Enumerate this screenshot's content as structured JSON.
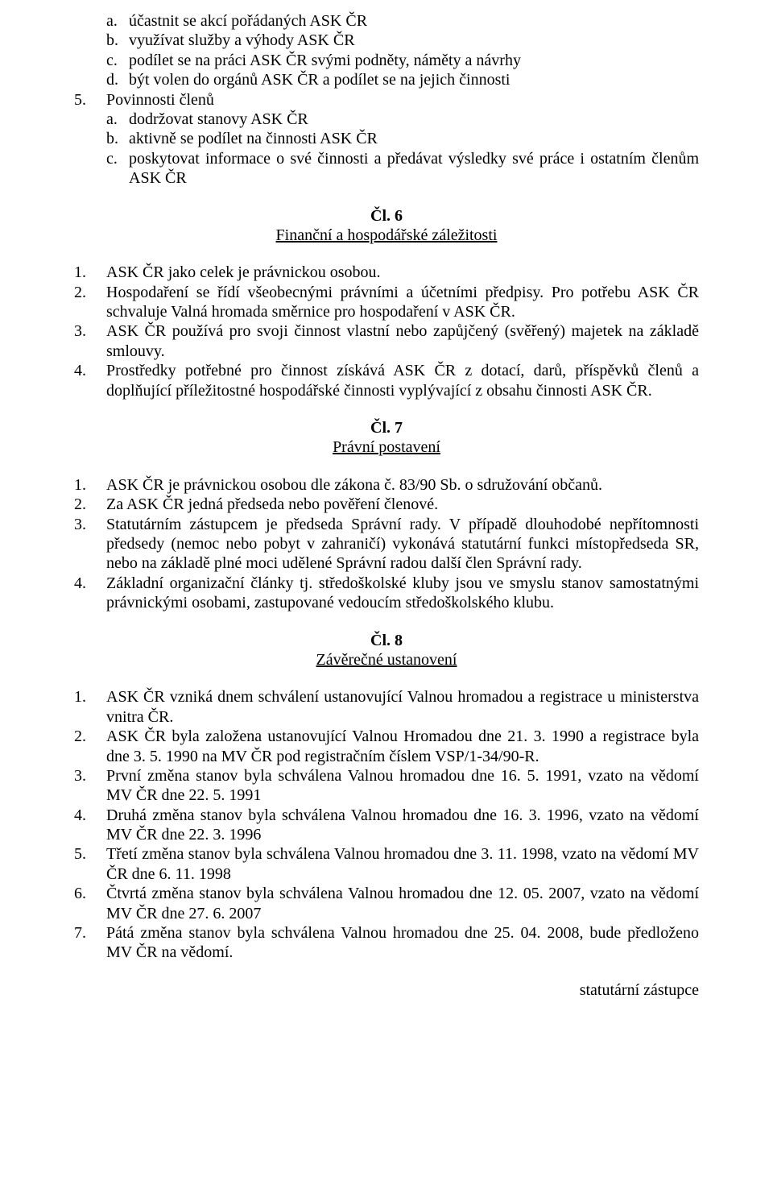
{
  "list4_sub": [
    {
      "m": "a.",
      "t": "účastnit se akcí pořádaných ASK ČR"
    },
    {
      "m": "b.",
      "t": "využívat služby a výhody ASK ČR"
    },
    {
      "m": "c.",
      "t": "podílet se na práci ASK ČR svými podněty, náměty a návrhy"
    },
    {
      "m": "d.",
      "t": "být volen do orgánů ASK ČR a podílet se na jejich činnosti"
    }
  ],
  "item5_marker": "5.",
  "item5_text": "Povinnosti členů",
  "list5_sub": [
    {
      "m": "a.",
      "t": "dodržovat stanovy ASK ČR"
    },
    {
      "m": "b.",
      "t": "aktivně se podílet na činnosti ASK ČR"
    },
    {
      "m": "c.",
      "t": "poskytovat informace o své činnosti a předávat výsledky své práce i ostatním členům ASK ČR"
    }
  ],
  "art6_title": "Čl. 6",
  "art6_sub": "Finanční a hospodářské záležitosti",
  "art6_items": [
    {
      "m": "1.",
      "t": "ASK ČR jako celek je právnickou osobou."
    },
    {
      "m": "2.",
      "t": "Hospodaření se řídí všeobecnými právními a účetními předpisy. Pro potřebu ASK ČR schvaluje Valná hromada směrnice pro hospodaření v ASK ČR."
    },
    {
      "m": "3.",
      "t": "ASK ČR používá pro svoji činnost vlastní nebo zapůjčený (svěřený) majetek na základě smlouvy."
    },
    {
      "m": "4.",
      "t": "Prostředky potřebné pro činnost získává ASK ČR z dotací, darů, příspěvků členů a doplňující příležitostné hospodářské činnosti vyplývající z obsahu činnosti ASK ČR."
    }
  ],
  "art7_title": "Čl. 7",
  "art7_sub": "Právní postavení",
  "art7_items": [
    {
      "m": "1.",
      "t": "ASK ČR je právnickou osobou dle zákona č. 83/90 Sb. o sdružování občanů."
    },
    {
      "m": "2.",
      "t": "Za ASK ČR jedná předseda nebo pověření členové."
    },
    {
      "m": "3.",
      "t": "Statutárním zástupcem je předseda Správní rady. V případě dlouhodobé nepřítomnosti předsedy (nemoc nebo pobyt v zahraničí) vykonává statutární funkci místopředseda SR, nebo na základě plné moci udělené Správní radou další člen Správní rady."
    },
    {
      "m": "4.",
      "t": "Základní organizační články tj. středoškolské kluby jsou ve smyslu stanov samostatnými právnickými osobami, zastupované vedoucím středoškolského klubu."
    }
  ],
  "art8_title": "Čl. 8",
  "art8_sub": "Závěrečné ustanovení",
  "art8_items": [
    {
      "m": "1.",
      "t": "ASK ČR vzniká dnem schválení ustanovující Valnou hromadou a registrace u ministerstva vnitra ČR."
    },
    {
      "m": "2.",
      "t": "ASK ČR byla založena ustanovující Valnou Hromadou dne 21. 3. 1990 a registrace byla dne 3. 5. 1990 na MV ČR pod registračním číslem VSP/1-34/90-R."
    },
    {
      "m": "3.",
      "t": "První změna stanov byla schválena Valnou hromadou dne 16. 5. 1991, vzato na vědomí MV ČR dne 22. 5. 1991"
    },
    {
      "m": "4.",
      "t": "Druhá změna stanov byla schválena Valnou hromadou dne 16. 3. 1996, vzato na vědomí MV ČR dne 22. 3. 1996"
    },
    {
      "m": "5.",
      "t": "Třetí změna stanov byla schválena Valnou hromadou dne 3. 11. 1998, vzato na vědomí MV ČR dne 6. 11. 1998"
    },
    {
      "m": "6.",
      "t": "Čtvrtá změna stanov byla schválena Valnou hromadou dne 12. 05. 2007, vzato na vědomí MV ČR dne 27. 6. 2007"
    },
    {
      "m": "7.",
      "t": "Pátá změna stanov byla schválena Valnou hromadou dne 25. 04. 2008, bude předloženo MV ČR na vědomí."
    }
  ],
  "footer": "statutární zástupce"
}
